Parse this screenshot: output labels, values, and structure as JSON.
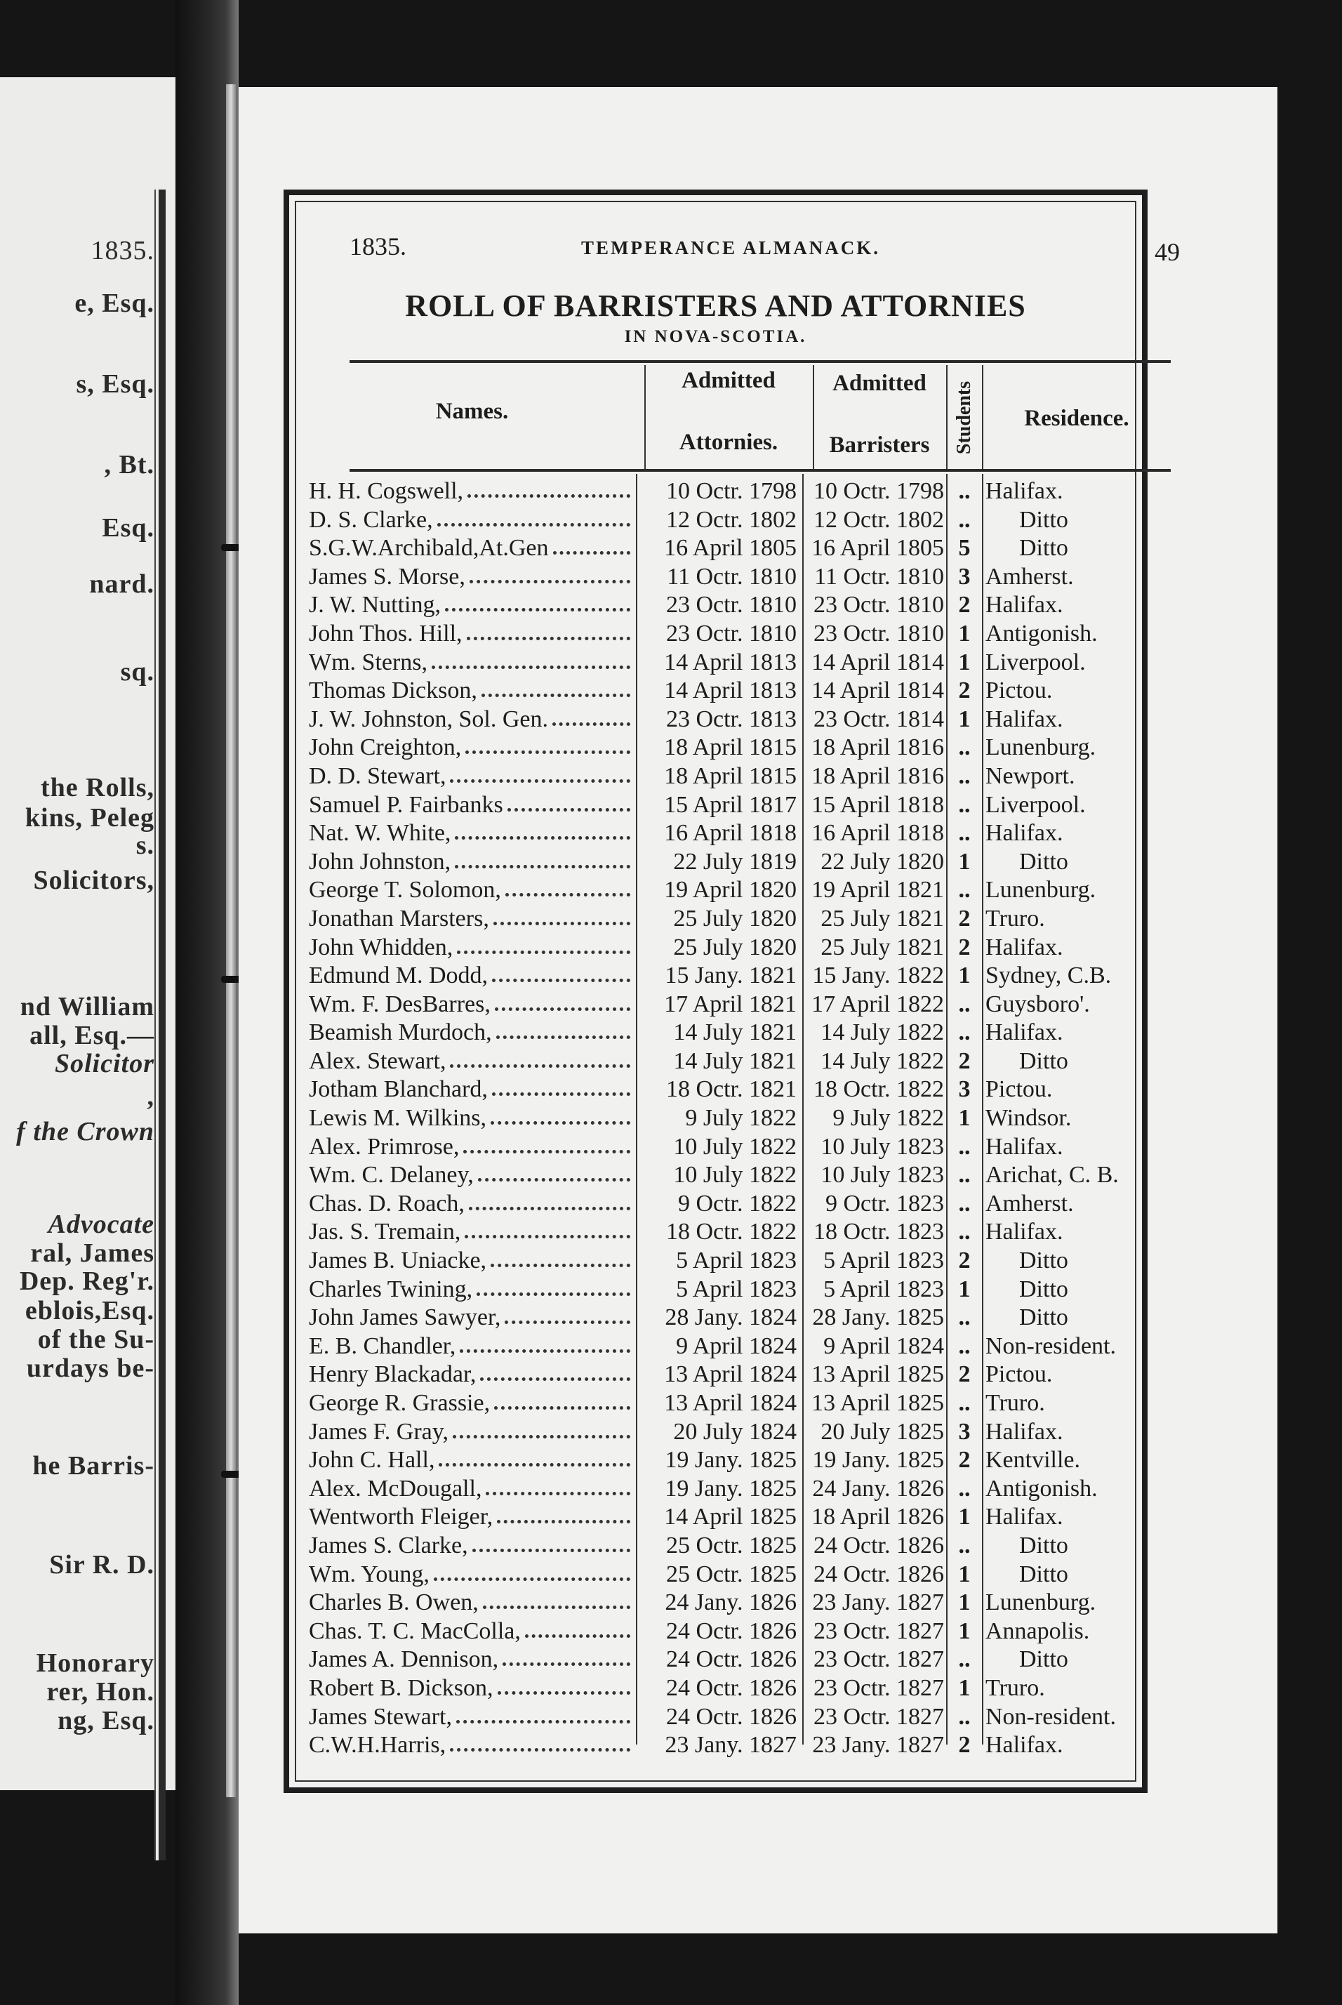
{
  "left_page": {
    "lines": [
      "1835.",
      "e, Esq.",
      "s, Esq.",
      ", Bt.",
      "Esq.",
      "nard.",
      "sq.",
      "the Rolls,",
      "kins, Peleg",
      "s.",
      "Solicitors,",
      "nd William",
      "all, Esq.—",
      "Solicitor",
      ",",
      "f the Crown",
      "Advocate",
      "ral, James",
      "Dep. Reg'r.",
      "eblois,Esq.",
      "of the Su-",
      "urdays be-",
      "he Barris-",
      "Sir R. D.",
      "Honorary",
      "rer, Hon.",
      "ng, Esq."
    ]
  },
  "header": {
    "year": "1835.",
    "running_title": "TEMPERANCE ALMANACK.",
    "page_number": "49"
  },
  "title": "ROLL OF BARRISTERS AND ATTORNIES",
  "subtitle": "IN NOVA-SCOTIA.",
  "columns": {
    "names": "Names.",
    "attorneys_top": "Admitted",
    "attorneys_bottom": "Attornies.",
    "barristers_top": "Admitted",
    "barristers_bottom": "Barristers",
    "students": "Students",
    "residence": "Residence."
  },
  "rows": [
    {
      "name": "H. H. Cogswell,",
      "attorney": "10 Octr. 1798",
      "barrister": "10 Octr. 1798",
      "students": "..",
      "residence": "Halifax."
    },
    {
      "name": "D. S. Clarke,",
      "attorney": "12 Octr. 1802",
      "barrister": "12 Octr. 1802",
      "students": "..",
      "residence": "Ditto"
    },
    {
      "name": "S.G.W.Archibald,At.Gen",
      "attorney": "16 April 1805",
      "barrister": "16 April 1805",
      "students": "5",
      "residence": "Ditto"
    },
    {
      "name": "James S. Morse,",
      "attorney": "11 Octr. 1810",
      "barrister": "11 Octr. 1810",
      "students": "3",
      "residence": "Amherst."
    },
    {
      "name": "J. W. Nutting,",
      "attorney": "23 Octr. 1810",
      "barrister": "23 Octr. 1810",
      "students": "2",
      "residence": "Halifax."
    },
    {
      "name": "John Thos. Hill,",
      "attorney": "23 Octr. 1810",
      "barrister": "23 Octr. 1810",
      "students": "1",
      "residence": "Antigonish."
    },
    {
      "name": "Wm. Sterns,",
      "attorney": "14 April 1813",
      "barrister": "14 April 1814",
      "students": "1",
      "residence": "Liverpool."
    },
    {
      "name": "Thomas Dickson,",
      "attorney": "14 April 1813",
      "barrister": "14 April 1814",
      "students": "2",
      "residence": "Pictou."
    },
    {
      "name": "J. W. Johnston, Sol. Gen.",
      "attorney": "23 Octr. 1813",
      "barrister": "23 Octr. 1814",
      "students": "1",
      "residence": "Halifax."
    },
    {
      "name": "John Creighton,",
      "attorney": "18 April 1815",
      "barrister": "18 April 1816",
      "students": "..",
      "residence": "Lunenburg."
    },
    {
      "name": "D. D. Stewart,",
      "attorney": "18 April 1815",
      "barrister": "18 April 1816",
      "students": "..",
      "residence": "Newport."
    },
    {
      "name": "Samuel P. Fairbanks",
      "attorney": "15 April 1817",
      "barrister": "15 April 1818",
      "students": "..",
      "residence": "Liverpool."
    },
    {
      "name": "Nat. W. White,",
      "attorney": "16 April 1818",
      "barrister": "16 April 1818",
      "students": "..",
      "residence": "Halifax."
    },
    {
      "name": "John Johnston,",
      "attorney": "22 July 1819",
      "barrister": "22 July 1820",
      "students": "1",
      "residence": "Ditto"
    },
    {
      "name": "George T. Solomon,",
      "attorney": "19 April 1820",
      "barrister": "19 April 1821",
      "students": "..",
      "residence": "Lunenburg."
    },
    {
      "name": "Jonathan Marsters,",
      "attorney": "25 July 1820",
      "barrister": "25 July 1821",
      "students": "2",
      "residence": "Truro."
    },
    {
      "name": "John Whidden,",
      "attorney": "25 July 1820",
      "barrister": "25 July 1821",
      "students": "2",
      "residence": "Halifax."
    },
    {
      "name": "Edmund M. Dodd,",
      "attorney": "15 Jany. 1821",
      "barrister": "15 Jany. 1822",
      "students": "1",
      "residence": "Sydney, C.B."
    },
    {
      "name": "Wm. F. DesBarres,",
      "attorney": "17 April 1821",
      "barrister": "17 April 1822",
      "students": "..",
      "residence": "Guysboro'."
    },
    {
      "name": "Beamish Murdoch,",
      "attorney": "14 July 1821",
      "barrister": "14 July 1822",
      "students": "..",
      "residence": "Halifax."
    },
    {
      "name": "Alex. Stewart,",
      "attorney": "14 July 1821",
      "barrister": "14 July 1822",
      "students": "2",
      "residence": "Ditto"
    },
    {
      "name": "Jotham Blanchard,",
      "attorney": "18 Octr. 1821",
      "barrister": "18 Octr. 1822",
      "students": "3",
      "residence": "Pictou."
    },
    {
      "name": "Lewis M. Wilkins,",
      "attorney": "9 July 1822",
      "barrister": "9 July 1822",
      "students": "1",
      "residence": "Windsor."
    },
    {
      "name": "Alex. Primrose,",
      "attorney": "10 July 1822",
      "barrister": "10 July 1823",
      "students": "..",
      "residence": "Halifax."
    },
    {
      "name": "Wm. C. Delaney,",
      "attorney": "10 July 1822",
      "barrister": "10 July 1823",
      "students": "..",
      "residence": "Arichat, C. B."
    },
    {
      "name": "Chas. D. Roach,",
      "attorney": "9 Octr. 1822",
      "barrister": "9 Octr. 1823",
      "students": "..",
      "residence": "Amherst."
    },
    {
      "name": "Jas. S. Tremain,",
      "attorney": "18 Octr. 1822",
      "barrister": "18 Octr. 1823",
      "students": "..",
      "residence": "Halifax."
    },
    {
      "name": "James B. Uniacke,",
      "attorney": "5 April 1823",
      "barrister": "5 April 1823",
      "students": "2",
      "residence": "Ditto"
    },
    {
      "name": "Charles Twining,",
      "attorney": "5 April 1823",
      "barrister": "5 April 1823",
      "students": "1",
      "residence": "Ditto"
    },
    {
      "name": "John James Sawyer,",
      "attorney": "28 Jany. 1824",
      "barrister": "28 Jany. 1825",
      "students": "..",
      "residence": "Ditto"
    },
    {
      "name": "E. B. Chandler,",
      "attorney": "9 April 1824",
      "barrister": "9 April 1824",
      "students": "..",
      "residence": "Non-resident."
    },
    {
      "name": "Henry Blackadar,",
      "attorney": "13 April 1824",
      "barrister": "13 April 1825",
      "students": "2",
      "residence": "Pictou."
    },
    {
      "name": "George R. Grassie,",
      "attorney": "13 April 1824",
      "barrister": "13 April 1825",
      "students": "..",
      "residence": "Truro."
    },
    {
      "name": "James F. Gray,",
      "attorney": "20 July 1824",
      "barrister": "20 July 1825",
      "students": "3",
      "residence": "Halifax."
    },
    {
      "name": "John C. Hall,",
      "attorney": "19 Jany. 1825",
      "barrister": "19 Jany. 1825",
      "students": "2",
      "residence": "Kentville."
    },
    {
      "name": "Alex. McDougall,",
      "attorney": "19 Jany. 1825",
      "barrister": "24 Jany. 1826",
      "students": "..",
      "residence": "Antigonish."
    },
    {
      "name": "Wentworth Fleiger,",
      "attorney": "14 April 1825",
      "barrister": "18 April 1826",
      "students": "1",
      "residence": "Halifax."
    },
    {
      "name": "James S. Clarke,",
      "attorney": "25 Octr. 1825",
      "barrister": "24 Octr. 1826",
      "students": "..",
      "residence": "Ditto"
    },
    {
      "name": "Wm. Young,",
      "attorney": "25 Octr. 1825",
      "barrister": "24 Octr. 1826",
      "students": "1",
      "residence": "Ditto"
    },
    {
      "name": "Charles B. Owen,",
      "attorney": "24 Jany. 1826",
      "barrister": "23 Jany. 1827",
      "students": "1",
      "residence": "Lunenburg."
    },
    {
      "name": "Chas. T. C. MacColla,",
      "attorney": "24 Octr. 1826",
      "barrister": "23 Octr. 1827",
      "students": "1",
      "residence": "Annapolis."
    },
    {
      "name": "James A. Dennison,",
      "attorney": "24 Octr. 1826",
      "barrister": "23 Octr. 1827",
      "students": "..",
      "residence": "Ditto"
    },
    {
      "name": "Robert B. Dickson,",
      "attorney": "24 Octr. 1826",
      "barrister": "23 Octr. 1827",
      "students": "1",
      "residence": "Truro."
    },
    {
      "name": "James Stewart,",
      "attorney": "24 Octr. 1826",
      "barrister": "23 Octr. 1827",
      "students": "..",
      "residence": "Non-resident."
    },
    {
      "name": "C.W.H.Harris,",
      "attorney": "23 Jany. 1827",
      "barrister": "23 Jany. 1827",
      "students": "2",
      "residence": "Halifax."
    }
  ]
}
